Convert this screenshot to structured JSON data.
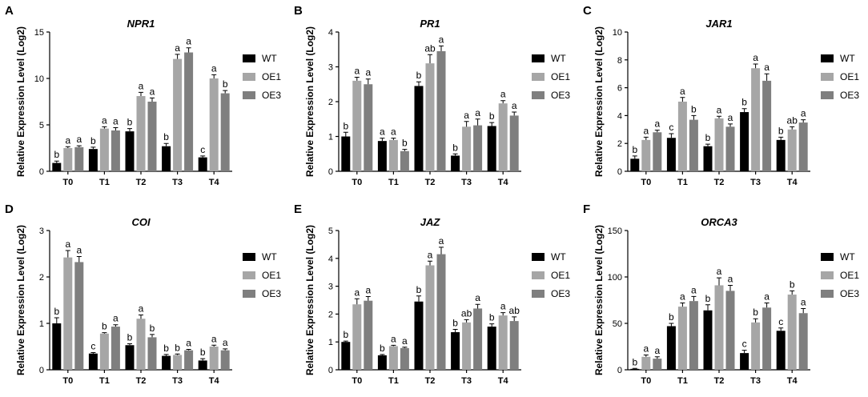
{
  "chart_data": [
    {
      "type": "bar",
      "panel": "A",
      "title": "NPR1",
      "y_label": "Relative Expression Level (Log2)",
      "categories": [
        "T0",
        "T1",
        "T2",
        "T3",
        "T4"
      ],
      "ylim": [
        0,
        15
      ],
      "yticks": [
        0,
        5,
        10,
        15
      ],
      "legend": "right",
      "series": [
        {
          "name": "WT",
          "color": "#000000",
          "values": [
            0.9,
            2.4,
            4.3,
            2.7,
            1.5
          ],
          "errors": [
            0.2,
            0.2,
            0.3,
            0.3,
            0.15
          ],
          "letters": [
            "b",
            "b",
            "b",
            "b",
            "c"
          ]
        },
        {
          "name": "OE1",
          "color": "#a6a6a6",
          "values": [
            2.5,
            4.6,
            8.1,
            12.1,
            10.0
          ],
          "errors": [
            0.15,
            0.2,
            0.4,
            0.5,
            0.4
          ],
          "letters": [
            "a",
            "a",
            "a",
            "a",
            "a"
          ]
        },
        {
          "name": "OE3",
          "color": "#7f7f7f",
          "values": [
            2.6,
            4.4,
            7.5,
            12.8,
            8.4
          ],
          "errors": [
            0.15,
            0.3,
            0.4,
            0.5,
            0.3
          ],
          "letters": [
            "a",
            "a",
            "a",
            "a",
            "b"
          ]
        }
      ]
    },
    {
      "type": "bar",
      "panel": "B",
      "title": "PR1",
      "y_label": "Relative Expression Level (Log2)",
      "categories": [
        "T0",
        "T1",
        "T2",
        "T3",
        "T4"
      ],
      "ylim": [
        0,
        4
      ],
      "yticks": [
        0,
        1,
        2,
        3,
        4
      ],
      "legend": "right",
      "series": [
        {
          "name": "WT",
          "color": "#000000",
          "values": [
            1.0,
            0.87,
            2.45,
            0.45,
            1.3
          ],
          "errors": [
            0.12,
            0.08,
            0.12,
            0.05,
            0.1
          ],
          "letters": [
            "b",
            "a",
            "b",
            "b",
            "b"
          ]
        },
        {
          "name": "OE1",
          "color": "#a6a6a6",
          "values": [
            2.6,
            0.9,
            3.1,
            1.28,
            1.95
          ],
          "errors": [
            0.1,
            0.05,
            0.25,
            0.15,
            0.08
          ],
          "letters": [
            "a",
            "a",
            "ab",
            "a",
            "a"
          ]
        },
        {
          "name": "OE3",
          "color": "#7f7f7f",
          "values": [
            2.5,
            0.58,
            3.45,
            1.32,
            1.6
          ],
          "errors": [
            0.15,
            0.05,
            0.15,
            0.18,
            0.1
          ],
          "letters": [
            "a",
            "b",
            "a",
            "a",
            "a"
          ]
        }
      ]
    },
    {
      "type": "bar",
      "panel": "C",
      "title": "JAR1",
      "y_label": "Relative Expression Level (Log2)",
      "categories": [
        "T0",
        "T1",
        "T2",
        "T3",
        "T4"
      ],
      "ylim": [
        0,
        10
      ],
      "yticks": [
        0,
        2,
        4,
        6,
        8,
        10
      ],
      "legend": "right",
      "series": [
        {
          "name": "WT",
          "color": "#000000",
          "values": [
            0.9,
            2.4,
            1.8,
            4.25,
            2.25
          ],
          "errors": [
            0.2,
            0.3,
            0.15,
            0.25,
            0.2
          ],
          "letters": [
            "b",
            "c",
            "b",
            "b",
            "b"
          ]
        },
        {
          "name": "OE1",
          "color": "#a6a6a6",
          "values": [
            2.25,
            5.0,
            3.8,
            7.4,
            3.0
          ],
          "errors": [
            0.2,
            0.3,
            0.15,
            0.3,
            0.2
          ],
          "letters": [
            "a",
            "a",
            "a",
            "a",
            "ab"
          ]
        },
        {
          "name": "OE3",
          "color": "#7f7f7f",
          "values": [
            2.8,
            3.7,
            3.2,
            6.5,
            3.5
          ],
          "errors": [
            0.15,
            0.3,
            0.2,
            0.5,
            0.2
          ],
          "letters": [
            "a",
            "b",
            "a",
            "a",
            "a"
          ]
        }
      ]
    },
    {
      "type": "bar",
      "panel": "D",
      "title": "COI",
      "y_label": "Relative Expression Level (Log2)",
      "categories": [
        "T0",
        "T1",
        "T2",
        "T3",
        "T4"
      ],
      "ylim": [
        0,
        3
      ],
      "yticks": [
        0,
        1,
        2,
        3
      ],
      "legend": "right",
      "series": [
        {
          "name": "WT",
          "color": "#000000",
          "values": [
            1.0,
            0.35,
            0.53,
            0.3,
            0.2
          ],
          "errors": [
            0.12,
            0.02,
            0.03,
            0.03,
            0.04
          ],
          "letters": [
            "b",
            "c",
            "b",
            "b",
            "b"
          ]
        },
        {
          "name": "OE1",
          "color": "#a6a6a6",
          "values": [
            2.42,
            0.78,
            1.1,
            0.32,
            0.5
          ],
          "errors": [
            0.15,
            0.02,
            0.08,
            0.02,
            0.03
          ],
          "letters": [
            "a",
            "b",
            "a",
            "b",
            "a"
          ]
        },
        {
          "name": "OE3",
          "color": "#7f7f7f",
          "values": [
            2.32,
            0.93,
            0.7,
            0.42,
            0.42
          ],
          "errors": [
            0.12,
            0.04,
            0.06,
            0.02,
            0.03
          ],
          "letters": [
            "a",
            "a",
            "b",
            "a",
            "a"
          ]
        }
      ]
    },
    {
      "type": "bar",
      "panel": "E",
      "title": "JAZ",
      "y_label": "Relative Expression Level (Log2)",
      "categories": [
        "T0",
        "T1",
        "T2",
        "T3",
        "T4"
      ],
      "ylim": [
        0,
        5
      ],
      "yticks": [
        0,
        1,
        2,
        3,
        4,
        5
      ],
      "legend": "right",
      "series": [
        {
          "name": "WT",
          "color": "#000000",
          "values": [
            1.0,
            0.52,
            2.45,
            1.35,
            1.55
          ],
          "errors": [
            0.03,
            0.03,
            0.2,
            0.1,
            0.1
          ],
          "letters": [
            "b",
            "b",
            "b",
            "b",
            "b"
          ]
        },
        {
          "name": "OE1",
          "color": "#a6a6a6",
          "values": [
            2.35,
            0.85,
            3.75,
            1.7,
            1.95
          ],
          "errors": [
            0.2,
            0.03,
            0.15,
            0.1,
            0.1
          ],
          "letters": [
            "a",
            "a",
            "a",
            "ab",
            "a"
          ]
        },
        {
          "name": "OE3",
          "color": "#7f7f7f",
          "values": [
            2.48,
            0.78,
            4.15,
            2.2,
            1.75
          ],
          "errors": [
            0.15,
            0.03,
            0.25,
            0.15,
            0.15
          ],
          "letters": [
            "a",
            "a",
            "a",
            "a",
            "ab"
          ]
        }
      ]
    },
    {
      "type": "bar",
      "panel": "F",
      "title": "ORCA3",
      "y_label": "Relative Expression Level (Log2)",
      "categories": [
        "T0",
        "T1",
        "T2",
        "T3",
        "T4"
      ],
      "ylim": [
        0,
        150
      ],
      "yticks": [
        0,
        50,
        100,
        150
      ],
      "legend": "right",
      "series": [
        {
          "name": "WT",
          "color": "#000000",
          "values": [
            1,
            47,
            64,
            18,
            42
          ],
          "errors": [
            0.5,
            3,
            6,
            3,
            3
          ],
          "letters": [
            "b",
            "b",
            "b",
            "c",
            "c"
          ]
        },
        {
          "name": "OE1",
          "color": "#a6a6a6",
          "values": [
            14,
            68,
            91,
            51,
            81
          ],
          "errors": [
            2,
            4,
            8,
            4,
            4
          ],
          "letters": [
            "a",
            "a",
            "a",
            "b",
            "b"
          ]
        },
        {
          "name": "OE3",
          "color": "#7f7f7f",
          "values": [
            12,
            74,
            85,
            67,
            61
          ],
          "errors": [
            2,
            5,
            6,
            5,
            5
          ],
          "letters": [
            "a",
            "a",
            "a",
            "a",
            "a"
          ]
        }
      ]
    }
  ]
}
